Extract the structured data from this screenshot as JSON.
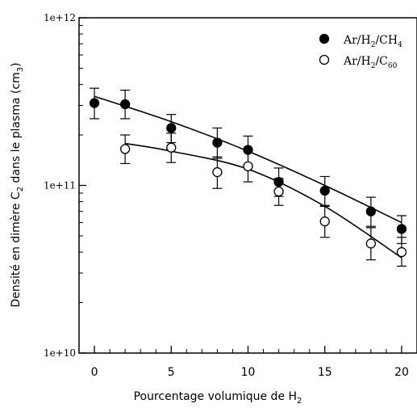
{
  "chart_data": {
    "type": "scatter",
    "xlabel": "Pourcentage volumique de H",
    "xlabel_sub": "2",
    "ylabel_parts": [
      "Densité en dimère C",
      "2",
      " dans le plasma (cm",
      "3",
      ")"
    ],
    "yscale": "log",
    "xlim": [
      -1,
      21
    ],
    "ylim": [
      10000000000.0,
      1000000000000.0
    ],
    "xticks": [
      "0",
      "5",
      "10",
      "15",
      "20"
    ],
    "xtick_values": [
      0,
      5,
      10,
      15,
      20
    ],
    "yticks": [
      "1e+10",
      "1e+11",
      "1e+12"
    ],
    "ytick_values": [
      10000000000.0,
      100000000000.0,
      1000000000000.0
    ],
    "grid": false,
    "legend_position": "top-right",
    "series": [
      {
        "name": "Ar/H2/CH4",
        "legend": {
          "a": "Ar/H",
          "s1": "2",
          "b": "/CH",
          "s2": "4"
        },
        "marker": "filled-circle",
        "x": [
          0,
          2,
          5,
          8,
          10,
          12,
          15,
          18,
          20
        ],
        "y": [
          310000000000.0,
          305000000000.0,
          220000000000.0,
          180000000000.0,
          163000000000.0,
          105000000000.0,
          93000000000.0,
          70000000000.0,
          55000000000.0
        ],
        "err_hi": [
          380000000000.0,
          370000000000.0,
          265000000000.0,
          220000000000.0,
          197000000000.0,
          127000000000.0,
          113000000000.0,
          85000000000.0,
          66000000000.0
        ],
        "err_lo": [
          250000000000.0,
          250000000000.0,
          180000000000.0,
          145000000000.0,
          133000000000.0,
          86000000000.0,
          76000000000.0,
          57000000000.0,
          45000000000.0
        ],
        "fit": [
          [
            0,
            340000000000.0
          ],
          [
            5,
            240000000000.0
          ],
          [
            10,
            160000000000.0
          ],
          [
            15,
            100000000000.0
          ],
          [
            20,
            60000000000.0
          ]
        ]
      },
      {
        "name": "Ar/H2/C60",
        "legend": {
          "a": "Ar/H",
          "s1": "2",
          "b": "/C",
          "s2": "60"
        },
        "marker": "open-circle",
        "x": [
          2,
          5,
          8,
          10,
          12,
          15,
          18,
          20
        ],
        "y": [
          165000000000.0,
          168000000000.0,
          120000000000.0,
          130000000000.0,
          92000000000.0,
          61000000000.0,
          45000000000.0,
          40000000000.0
        ],
        "err_hi": [
          200000000000.0,
          205000000000.0,
          148000000000.0,
          160000000000.0,
          110000000000.0,
          75000000000.0,
          56000000000.0,
          49000000000.0
        ],
        "err_lo": [
          135000000000.0,
          137000000000.0,
          96000000000.0,
          105000000000.0,
          76000000000.0,
          49000000000.0,
          36000000000.0,
          33000000000.0
        ],
        "fit": [
          [
            2,
            178000000000.0
          ],
          [
            5,
            160000000000.0
          ],
          [
            10,
            125000000000.0
          ],
          [
            15,
            75000000000.0
          ],
          [
            20,
            37000000000.0
          ]
        ]
      }
    ]
  }
}
